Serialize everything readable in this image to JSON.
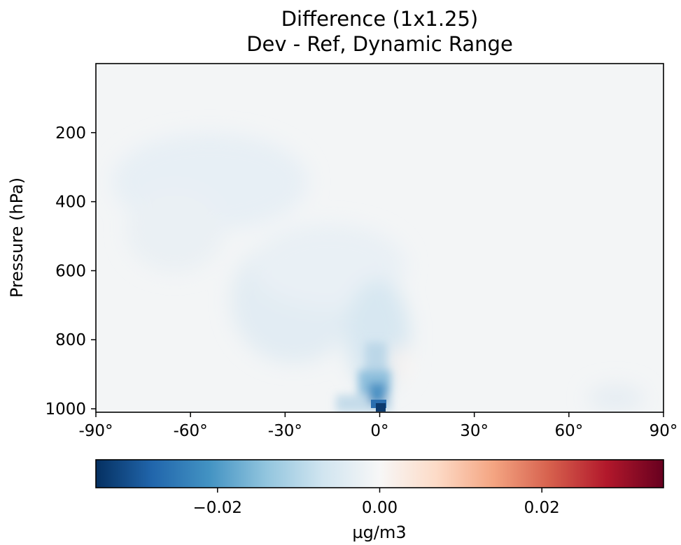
{
  "chart_data": {
    "type": "heatmap",
    "title": "Difference (1x1.25)",
    "subtitle": "Dev - Ref, Dynamic Range",
    "ylabel": "Pressure (hPa)",
    "xlabel": "",
    "x_ticks": [
      {
        "value": -90,
        "label": "-90°"
      },
      {
        "value": -60,
        "label": "-60°"
      },
      {
        "value": -30,
        "label": "-30°"
      },
      {
        "value": 0,
        "label": "0°"
      },
      {
        "value": 30,
        "label": "30°"
      },
      {
        "value": 60,
        "label": "60°"
      },
      {
        "value": 90,
        "label": "90°"
      }
    ],
    "y_ticks": [
      {
        "value": 200,
        "label": "200"
      },
      {
        "value": 400,
        "label": "400"
      },
      {
        "value": 600,
        "label": "600"
      },
      {
        "value": 800,
        "label": "800"
      },
      {
        "value": 1000,
        "label": "1000"
      }
    ],
    "xlim": [
      -90,
      90
    ],
    "ylim": [
      1010,
      0
    ],
    "colorbar": {
      "label": "µg/m3",
      "vmin": -0.035,
      "vmax": 0.035,
      "colormap": "RdBu_r",
      "ticks": [
        {
          "value": -0.02,
          "label": "−0.02"
        },
        {
          "value": 0.0,
          "label": "0.00"
        },
        {
          "value": 0.02,
          "label": "0.02"
        }
      ]
    },
    "field_features": [
      {
        "lat": 0,
        "pressure": 1000,
        "value": -0.035,
        "note": "minimum near surface at equator"
      },
      {
        "lat": -1,
        "pressure": 930,
        "value": -0.016
      },
      {
        "lat": -25,
        "pressure": 650,
        "value": -0.004
      },
      {
        "lat": -40,
        "pressure": 300,
        "value": -0.002
      },
      {
        "lat": 0,
        "pressure": 100,
        "value": 0.0
      }
    ]
  }
}
